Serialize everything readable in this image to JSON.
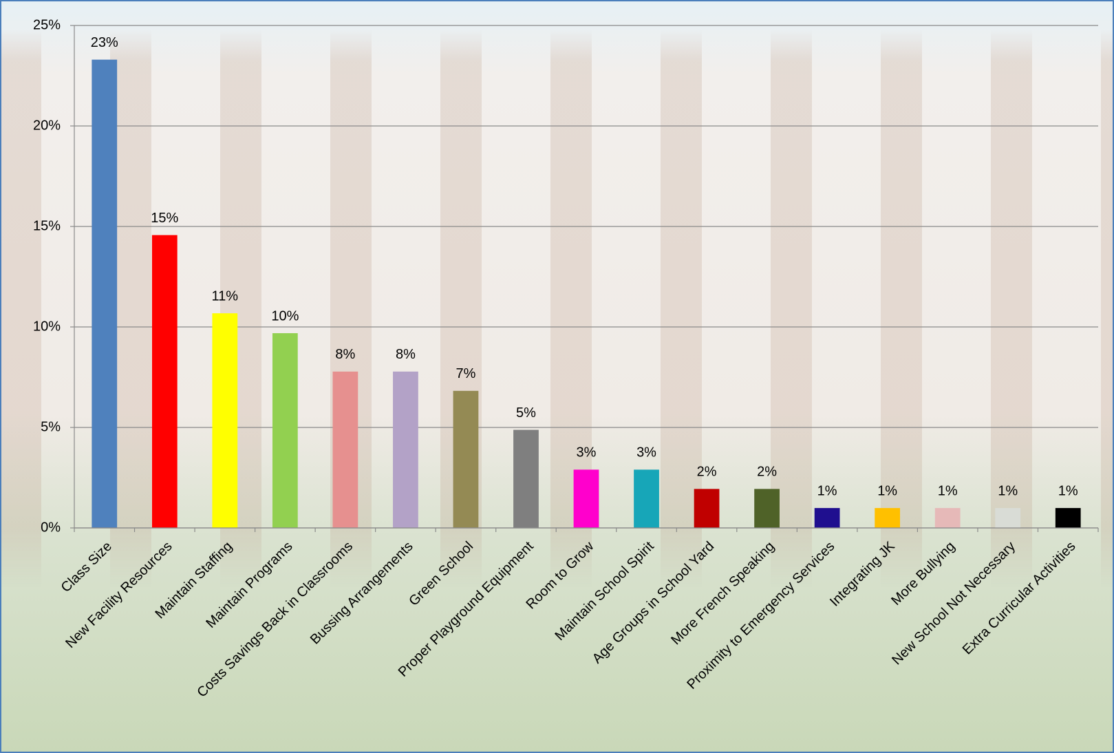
{
  "chart_data": {
    "type": "bar",
    "categories": [
      "Class Size",
      "New Facility Resources",
      "Maintain Staffing",
      "Maintain Programs",
      "Costs Savings Back in Classrooms",
      "Bussing Arrangements",
      "Green School",
      "Proper Playground Equipment",
      "Room to Grow",
      "Maintain School Spirit",
      "Age Groups in School Yard",
      "More French Speaking",
      "Proximity to Emergency Services",
      "Integrating JK",
      "More Bullying",
      "New School Not Necessary",
      "Extra Curricular Activities"
    ],
    "values": [
      23.3,
      14.57,
      10.68,
      9.69,
      7.78,
      7.78,
      6.82,
      4.88,
      2.9,
      2.9,
      1.94,
      1.94,
      0.99,
      0.99,
      0.99,
      0.99,
      0.99
    ],
    "value_labels": [
      "23%",
      "15%",
      "11%",
      "10%",
      "8%",
      "8%",
      "7%",
      "5%",
      "3%",
      "3%",
      "2%",
      "2%",
      "1%",
      "1%",
      "1%",
      "1%",
      "1%"
    ],
    "colors": [
      "#4f81bd",
      "#ff0000",
      "#ffff00",
      "#92d050",
      "#e6908f",
      "#b3a2c7",
      "#948a54",
      "#7f7f7f",
      "#ff00cc",
      "#17a6b8",
      "#c00000",
      "#4f6228",
      "#1f0f8f",
      "#ffc000",
      "#e6b9b8",
      "#d9dcd6",
      "#000000"
    ],
    "ylim": [
      0,
      25
    ],
    "yticks": [
      {
        "value": 0,
        "label": "0%"
      },
      {
        "value": 5,
        "label": "5%"
      },
      {
        "value": 10,
        "label": "10%"
      },
      {
        "value": 15,
        "label": "15%"
      },
      {
        "value": 20,
        "label": "20%"
      },
      {
        "value": 25,
        "label": "25%"
      }
    ],
    "grid": true
  }
}
